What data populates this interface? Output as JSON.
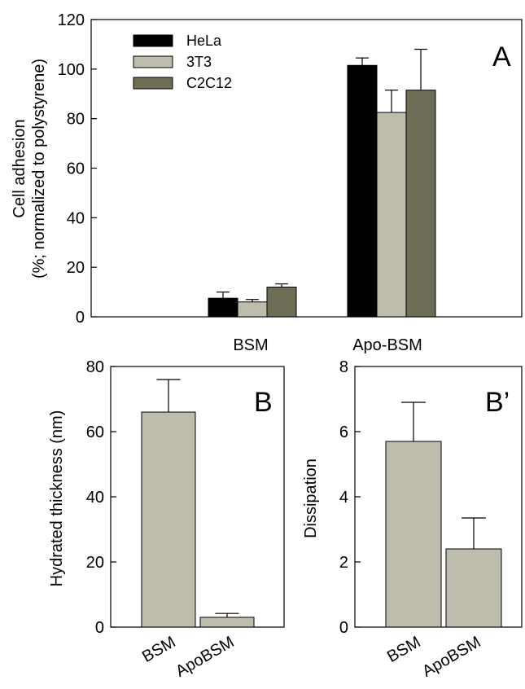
{
  "chart_data": [
    {
      "panel": "A",
      "type": "bar",
      "categories": [
        "BSM",
        "Apo-BSM"
      ],
      "series": [
        {
          "name": "HeLa",
          "color": "#000000",
          "values": [
            7.5,
            101.5
          ],
          "errors": [
            2.5,
            3
          ]
        },
        {
          "name": "3T3",
          "color": "#bdbcad",
          "values": [
            6,
            82.5
          ],
          "errors": [
            1,
            9
          ]
        },
        {
          "name": "C2C12",
          "color": "#6e6d56",
          "values": [
            12,
            91.5
          ],
          "errors": [
            1.3,
            16.5
          ]
        }
      ],
      "ylabel_line1": "Cell adhesion",
      "ylabel_line2": "(%; normalized to polystyrene)",
      "ylim": [
        0,
        120
      ],
      "yticks": [
        "0",
        "20",
        "40",
        "60",
        "80",
        "100",
        "120"
      ],
      "legend_position": "top-left"
    },
    {
      "panel": "B",
      "type": "bar",
      "categories": [
        "BSM",
        "ApoBSM"
      ],
      "values": [
        66,
        3
      ],
      "errors": [
        10,
        1.2
      ],
      "color": "#bdbcad",
      "ylabel": "Hydrated thickness (nm)",
      "ylim": [
        0,
        80
      ],
      "yticks": [
        "0",
        "20",
        "40",
        "60",
        "80"
      ]
    },
    {
      "panel": "B’",
      "type": "bar",
      "categories": [
        "BSM",
        "ApoBSM"
      ],
      "values": [
        5.7,
        2.4
      ],
      "errors": [
        1.2,
        0.95
      ],
      "color": "#bdbcad",
      "ylabel": "Dissipation",
      "ylim": [
        0,
        8
      ],
      "yticks": [
        "0",
        "2",
        "4",
        "6",
        "8"
      ]
    }
  ]
}
